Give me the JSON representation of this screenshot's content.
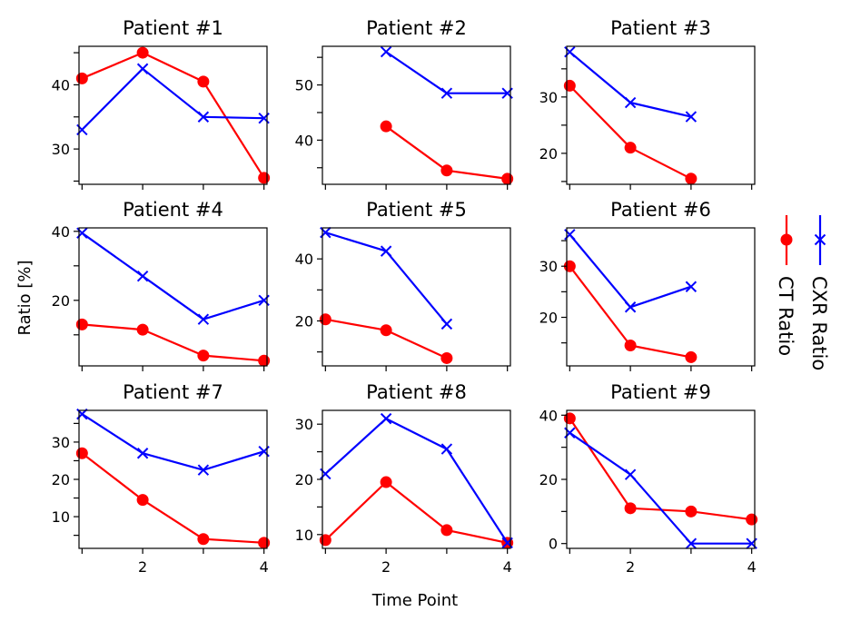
{
  "figure": {
    "xlabel": "Time Point",
    "ylabel": "Ratio [%]"
  },
  "legend": {
    "placement": "right-vertical-rotated",
    "entries": [
      {
        "label": "CT Ratio",
        "color": "#ff0000",
        "marker": "circle"
      },
      {
        "label": "CXR Ratio",
        "color": "#0000ff",
        "marker": "x"
      }
    ]
  },
  "chart_data": [
    {
      "type": "line",
      "title": "Patient #1",
      "xlim": [
        0.95,
        4.05
      ],
      "ylim": [
        24.5,
        46
      ],
      "xticks": [
        1,
        2,
        3,
        4
      ],
      "xticklabels": [],
      "yticks": [
        25,
        30,
        35,
        40,
        45
      ],
      "yticklabels": [
        "",
        "30",
        "",
        "40",
        ""
      ],
      "series": [
        {
          "name": "CT Ratio",
          "x": [
            1,
            2,
            3,
            4
          ],
          "y": [
            41,
            45,
            40.5,
            25.5
          ]
        },
        {
          "name": "CXR Ratio",
          "x": [
            1,
            2,
            3,
            4
          ],
          "y": [
            33,
            42.5,
            35,
            34.8
          ]
        }
      ]
    },
    {
      "type": "line",
      "title": "Patient #2",
      "xlim": [
        0.95,
        4.05
      ],
      "ylim": [
        32,
        57
      ],
      "xticks": [
        1,
        2,
        3,
        4
      ],
      "xticklabels": [],
      "yticks": [
        35,
        40,
        45,
        50,
        55
      ],
      "yticklabels": [
        "",
        "40",
        "",
        "50",
        ""
      ],
      "series": [
        {
          "name": "CT Ratio",
          "x": [
            2,
            3,
            4
          ],
          "y": [
            42.5,
            34.5,
            33
          ]
        },
        {
          "name": "CXR Ratio",
          "x": [
            2,
            3,
            4
          ],
          "y": [
            56,
            48.5,
            48.5
          ]
        }
      ]
    },
    {
      "type": "line",
      "title": "Patient #3",
      "xlim": [
        0.95,
        4.05
      ],
      "ylim": [
        14.5,
        39
      ],
      "xticks": [
        1,
        2,
        3,
        4
      ],
      "xticklabels": [],
      "yticks": [
        15,
        20,
        25,
        30,
        35
      ],
      "yticklabels": [
        "",
        "20",
        "",
        "30",
        ""
      ],
      "series": [
        {
          "name": "CT Ratio",
          "x": [
            1,
            2,
            3
          ],
          "y": [
            32,
            21,
            15.5
          ]
        },
        {
          "name": "CXR Ratio",
          "x": [
            1,
            2,
            3
          ],
          "y": [
            38,
            29,
            26.5
          ]
        }
      ]
    },
    {
      "type": "line",
      "title": "Patient #4",
      "xlim": [
        0.95,
        4.05
      ],
      "ylim": [
        1,
        41
      ],
      "xticks": [
        1,
        2,
        3,
        4
      ],
      "xticklabels": [],
      "yticks": [
        10,
        20,
        30,
        40
      ],
      "yticklabels": [
        "",
        "20",
        "",
        "40"
      ],
      "series": [
        {
          "name": "CT Ratio",
          "x": [
            1,
            2,
            3,
            4
          ],
          "y": [
            13,
            11.5,
            4,
            2.5
          ]
        },
        {
          "name": "CXR Ratio",
          "x": [
            1,
            2,
            3,
            4
          ],
          "y": [
            39.5,
            27,
            14.5,
            20
          ]
        }
      ]
    },
    {
      "type": "line",
      "title": "Patient #5",
      "xlim": [
        0.95,
        4.05
      ],
      "ylim": [
        5.5,
        50
      ],
      "xticks": [
        1,
        2,
        3,
        4
      ],
      "xticklabels": [],
      "yticks": [
        10,
        20,
        30,
        40
      ],
      "yticklabels": [
        "",
        "20",
        "",
        "40"
      ],
      "series": [
        {
          "name": "CT Ratio",
          "x": [
            1,
            2,
            3
          ],
          "y": [
            20.5,
            17,
            8
          ]
        },
        {
          "name": "CXR Ratio",
          "x": [
            1,
            2,
            3
          ],
          "y": [
            48.5,
            42.5,
            19
          ]
        }
      ]
    },
    {
      "type": "line",
      "title": "Patient #6",
      "xlim": [
        0.95,
        4.05
      ],
      "ylim": [
        10.5,
        37.5
      ],
      "xticks": [
        1,
        2,
        3,
        4
      ],
      "xticklabels": [],
      "yticks": [
        15,
        20,
        25,
        30,
        35
      ],
      "yticklabels": [
        "",
        "20",
        "",
        "30",
        ""
      ],
      "series": [
        {
          "name": "CT Ratio",
          "x": [
            1,
            2,
            3
          ],
          "y": [
            30,
            14.5,
            12.2
          ]
        },
        {
          "name": "CXR Ratio",
          "x": [
            1,
            2,
            3
          ],
          "y": [
            36.2,
            22,
            26
          ]
        }
      ]
    },
    {
      "type": "line",
      "title": "Patient #7",
      "xlim": [
        0.95,
        4.05
      ],
      "ylim": [
        1.5,
        38.5
      ],
      "xticks": [
        1,
        2,
        3,
        4
      ],
      "xticklabels": [
        "",
        "2",
        "",
        "4"
      ],
      "yticks": [
        5,
        10,
        15,
        20,
        25,
        30,
        35
      ],
      "yticklabels": [
        "",
        "10",
        "",
        "20",
        "",
        "30",
        ""
      ],
      "series": [
        {
          "name": "CT Ratio",
          "x": [
            1,
            2,
            3,
            4
          ],
          "y": [
            27,
            14.5,
            4,
            3
          ]
        },
        {
          "name": "CXR Ratio",
          "x": [
            1,
            2,
            3,
            4
          ],
          "y": [
            37.5,
            27,
            22.5,
            27.5
          ]
        }
      ]
    },
    {
      "type": "line",
      "title": "Patient #8",
      "xlim": [
        0.95,
        4.05
      ],
      "ylim": [
        7.5,
        32.5
      ],
      "xticks": [
        1,
        2,
        3,
        4
      ],
      "xticklabels": [
        "",
        "2",
        "",
        "4"
      ],
      "yticks": [
        10,
        15,
        20,
        25,
        30
      ],
      "yticklabels": [
        "10",
        "",
        "20",
        "",
        "30"
      ],
      "series": [
        {
          "name": "CT Ratio",
          "x": [
            1,
            2,
            3,
            4
          ],
          "y": [
            9,
            19.5,
            10.8,
            8.5
          ]
        },
        {
          "name": "CXR Ratio",
          "x": [
            1,
            2,
            3,
            4
          ],
          "y": [
            21,
            31,
            25.5,
            8.5
          ]
        }
      ]
    },
    {
      "type": "line",
      "title": "Patient #9",
      "xlim": [
        0.95,
        4.05
      ],
      "ylim": [
        -1.5,
        41.5
      ],
      "xticks": [
        1,
        2,
        3,
        4
      ],
      "xticklabels": [
        "",
        "2",
        "",
        "4"
      ],
      "yticks": [
        0,
        10,
        20,
        30,
        40
      ],
      "yticklabels": [
        "0",
        "",
        "20",
        "",
        "40"
      ],
      "series": [
        {
          "name": "CT Ratio",
          "x": [
            1,
            2,
            3,
            4
          ],
          "y": [
            39,
            11,
            10,
            7.5
          ]
        },
        {
          "name": "CXR Ratio",
          "x": [
            1,
            2,
            3,
            4
          ],
          "y": [
            34.5,
            21.5,
            0,
            0
          ]
        }
      ]
    }
  ]
}
